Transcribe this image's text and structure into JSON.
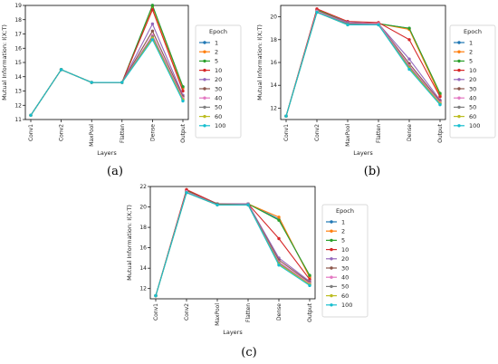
{
  "figure": {
    "panel_labels": [
      "(a)",
      "(b)",
      "(c)"
    ]
  },
  "colors": [
    "#1f77b4",
    "#ff7f0e",
    "#2ca02c",
    "#d62728",
    "#9467bd",
    "#8c564b",
    "#e377c2",
    "#7f7f7f",
    "#bcbd22",
    "#17becf"
  ],
  "chart_data": [
    {
      "type": "line",
      "panel": "(a)",
      "xlabel": "Layers",
      "ylabel": "Mutual Information: I(X;T)",
      "categories": [
        "Conv1",
        "Conv2",
        "MaxPool",
        "Flatten",
        "Dense",
        "Output"
      ],
      "ylim": [
        11,
        19
      ],
      "yticks": [
        11,
        12,
        13,
        14,
        15,
        16,
        17,
        18,
        19
      ],
      "legend_title": "Epoch",
      "legend_position": "right",
      "grid": false,
      "series": [
        {
          "name": "1",
          "values": [
            11.3,
            14.5,
            13.6,
            13.6,
            19.0,
            13.3
          ]
        },
        {
          "name": "2",
          "values": [
            11.3,
            14.5,
            13.6,
            13.6,
            18.9,
            13.2
          ]
        },
        {
          "name": "5",
          "values": [
            11.3,
            14.5,
            13.6,
            13.6,
            19.0,
            13.3
          ]
        },
        {
          "name": "10",
          "values": [
            11.3,
            14.5,
            13.6,
            13.6,
            18.7,
            13.0
          ]
        },
        {
          "name": "20",
          "values": [
            11.3,
            14.5,
            13.6,
            13.6,
            17.7,
            12.7
          ]
        },
        {
          "name": "30",
          "values": [
            11.3,
            14.5,
            13.6,
            13.6,
            17.2,
            12.6
          ]
        },
        {
          "name": "40",
          "values": [
            11.3,
            14.5,
            13.6,
            13.6,
            16.9,
            12.5
          ]
        },
        {
          "name": "50",
          "values": [
            11.3,
            14.5,
            13.6,
            13.6,
            16.8,
            12.4
          ]
        },
        {
          "name": "60",
          "values": [
            11.3,
            14.5,
            13.6,
            13.6,
            16.7,
            12.4
          ]
        },
        {
          "name": "100",
          "values": [
            11.3,
            14.5,
            13.6,
            13.6,
            16.6,
            12.3
          ]
        }
      ]
    },
    {
      "type": "line",
      "panel": "(b)",
      "xlabel": "Layers",
      "ylabel": "Mutual Information: I(X;T)",
      "categories": [
        "Conv1",
        "Conv2",
        "MaxPool",
        "Flatten",
        "Dense",
        "Output"
      ],
      "ylim": [
        11,
        21
      ],
      "yticks": [
        12,
        14,
        16,
        18,
        20
      ],
      "legend_title": "Epoch",
      "legend_position": "right",
      "grid": false,
      "series": [
        {
          "name": "1",
          "values": [
            11.3,
            20.6,
            19.5,
            19.4,
            19.0,
            13.2
          ]
        },
        {
          "name": "2",
          "values": [
            11.3,
            20.6,
            19.5,
            19.4,
            18.9,
            13.1
          ]
        },
        {
          "name": "5",
          "values": [
            11.3,
            20.6,
            19.5,
            19.4,
            19.0,
            13.3
          ]
        },
        {
          "name": "10",
          "values": [
            11.3,
            20.7,
            19.6,
            19.5,
            18.0,
            13.0
          ]
        },
        {
          "name": "20",
          "values": [
            11.3,
            20.5,
            19.5,
            19.4,
            16.3,
            12.7
          ]
        },
        {
          "name": "30",
          "values": [
            11.3,
            20.5,
            19.4,
            19.4,
            15.9,
            12.6
          ]
        },
        {
          "name": "40",
          "values": [
            11.3,
            20.5,
            19.4,
            19.4,
            15.7,
            12.5
          ]
        },
        {
          "name": "50",
          "values": [
            11.3,
            20.4,
            19.4,
            19.3,
            15.6,
            12.4
          ]
        },
        {
          "name": "60",
          "values": [
            11.3,
            20.4,
            19.3,
            19.3,
            15.5,
            12.4
          ]
        },
        {
          "name": "100",
          "values": [
            11.3,
            20.4,
            19.3,
            19.3,
            15.4,
            12.3
          ]
        }
      ]
    },
    {
      "type": "line",
      "panel": "(c)",
      "xlabel": "Layers",
      "ylabel": "Mutual Information: I(X;T)",
      "categories": [
        "Conv1",
        "Conv2",
        "MaxPool",
        "Flatten",
        "Dense",
        "Output"
      ],
      "ylim": [
        11,
        22
      ],
      "yticks": [
        12,
        14,
        16,
        18,
        20,
        22
      ],
      "legend_title": "Epoch",
      "legend_position": "right",
      "grid": false,
      "series": [
        {
          "name": "1",
          "values": [
            11.3,
            21.6,
            20.3,
            20.3,
            18.8,
            13.2
          ]
        },
        {
          "name": "2",
          "values": [
            11.3,
            21.6,
            20.3,
            20.3,
            19.0,
            13.1
          ]
        },
        {
          "name": "5",
          "values": [
            11.3,
            21.6,
            20.3,
            20.3,
            18.7,
            13.3
          ]
        },
        {
          "name": "10",
          "values": [
            11.3,
            21.7,
            20.3,
            20.3,
            16.9,
            12.9
          ]
        },
        {
          "name": "20",
          "values": [
            11.3,
            21.5,
            20.3,
            20.3,
            15.0,
            12.7
          ]
        },
        {
          "name": "30",
          "values": [
            11.3,
            21.5,
            20.3,
            20.2,
            14.8,
            12.6
          ]
        },
        {
          "name": "40",
          "values": [
            11.3,
            21.5,
            20.2,
            20.2,
            14.6,
            12.5
          ]
        },
        {
          "name": "50",
          "values": [
            11.3,
            21.4,
            20.2,
            20.2,
            14.5,
            12.4
          ]
        },
        {
          "name": "60",
          "values": [
            11.3,
            21.4,
            20.2,
            20.2,
            14.4,
            12.4
          ]
        },
        {
          "name": "100",
          "values": [
            11.3,
            21.4,
            20.2,
            20.2,
            14.3,
            12.3
          ]
        }
      ]
    }
  ]
}
